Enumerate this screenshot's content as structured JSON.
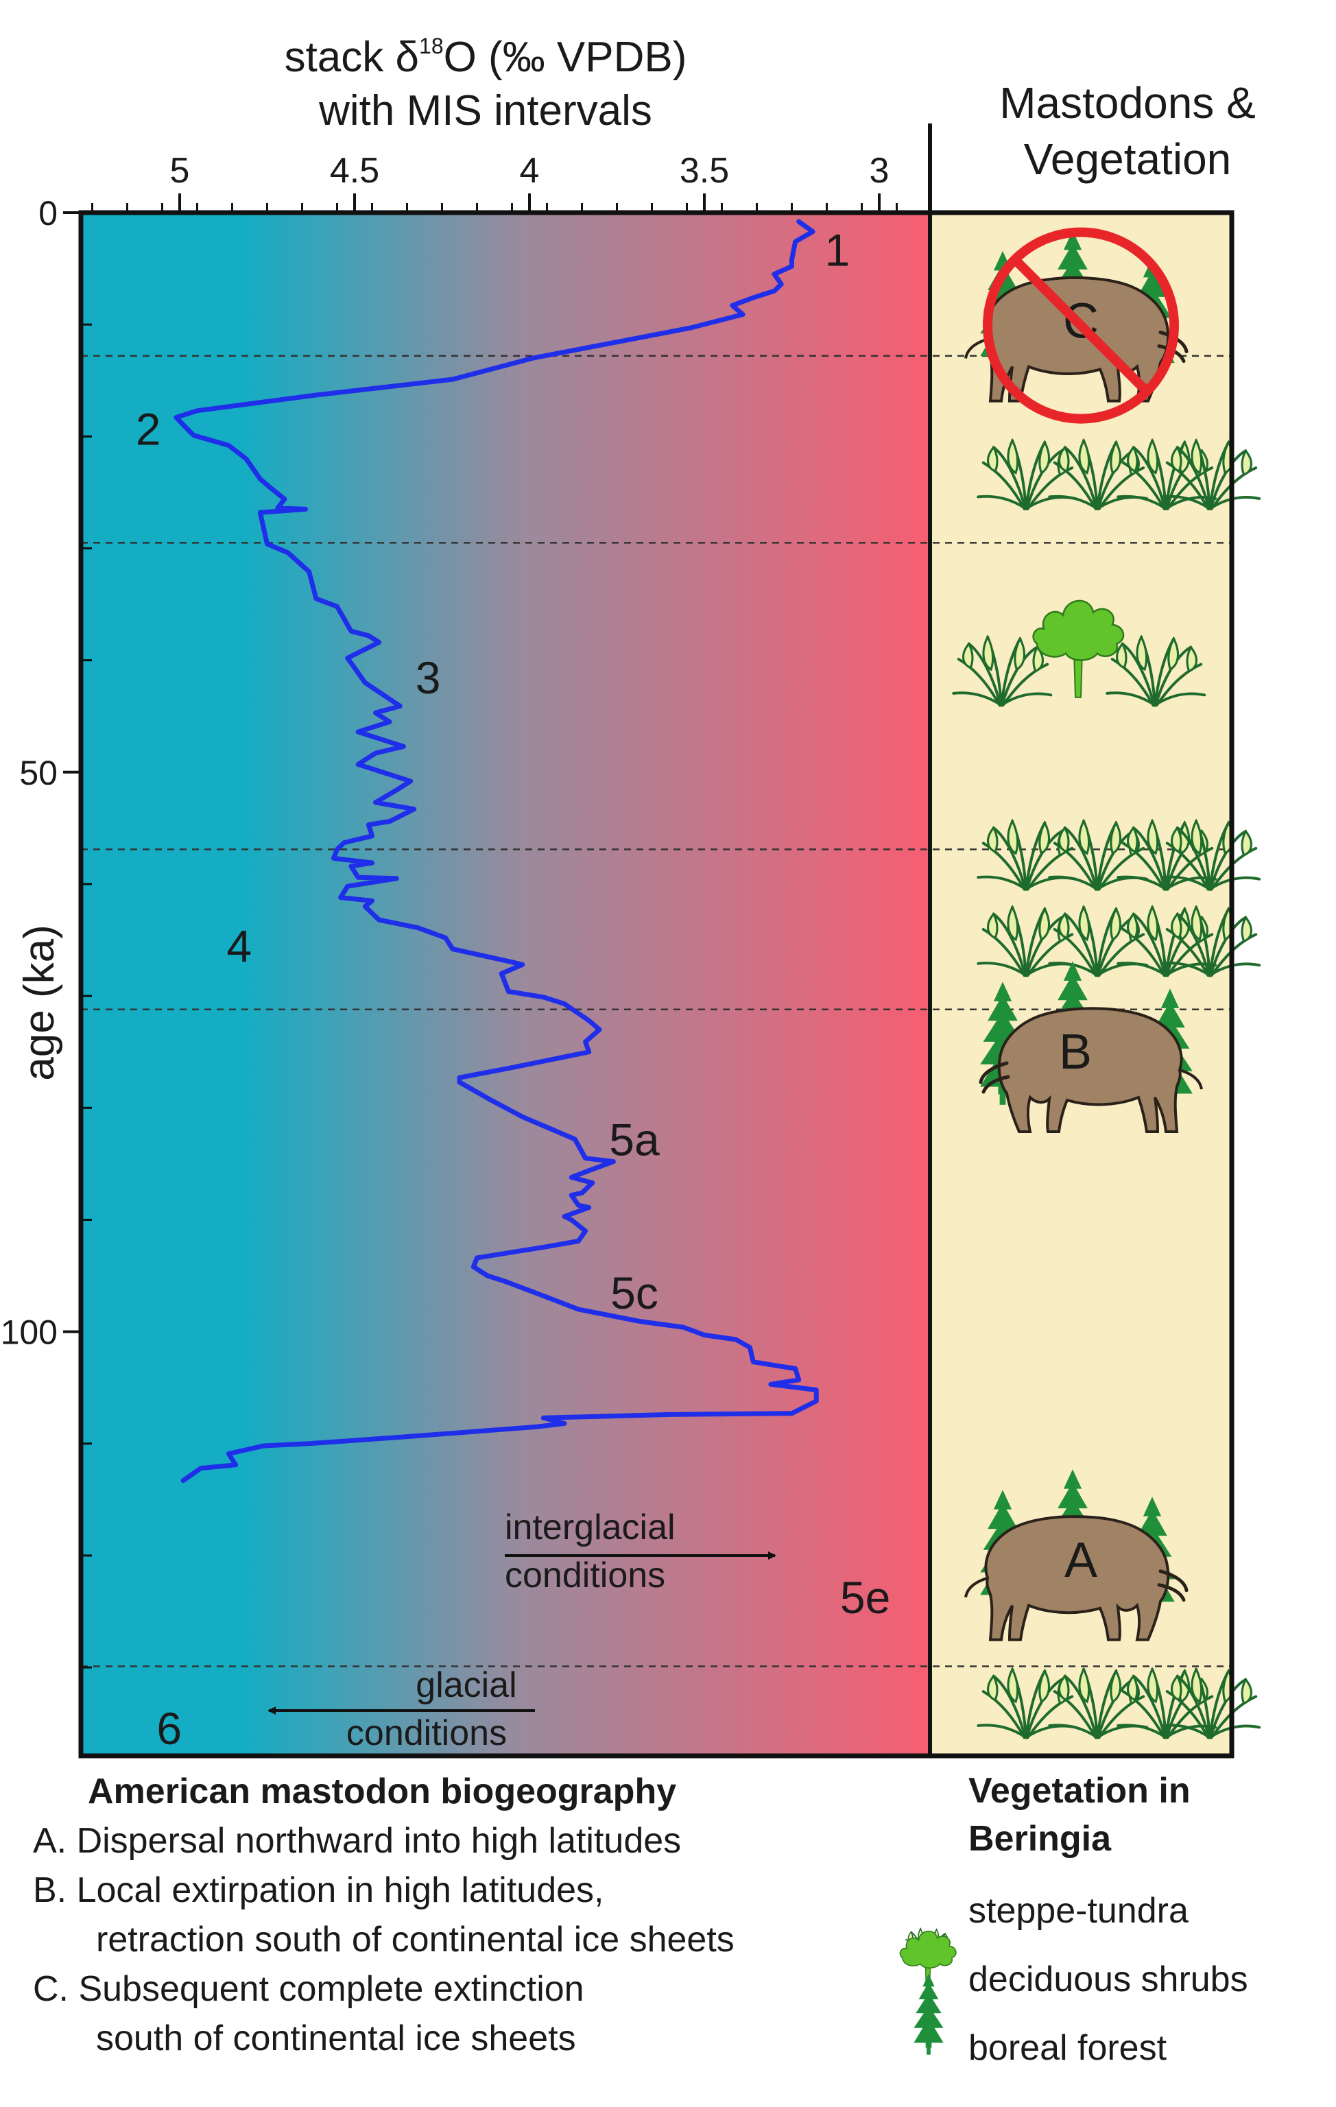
{
  "chart_data": {
    "type": "line",
    "title": "stack δ18O (‰ VPDB)\nwith MIS intervals",
    "top_title_line1": "stack δ",
    "top_title_sup": "18",
    "top_title_rest": "O (‰ VPDB)",
    "top_title_line2": "with MIS intervals",
    "xlabel": "stack δ18O (‰ VPDB)",
    "ylabel": "age (ka)",
    "xlim": [
      5.27,
      2.87
    ],
    "ylim": [
      0,
      140
    ],
    "x_ticks": [
      "5",
      "4.5",
      "4",
      "3.5",
      "3"
    ],
    "y_ticks": [
      "0",
      "50",
      "100"
    ],
    "grid": false,
    "series": [
      {
        "color": "#1f2ee8",
        "points": [
          [
            3.23,
            0.8
          ],
          [
            3.19,
            1.7
          ],
          [
            3.24,
            2.6
          ],
          [
            3.25,
            4.2
          ],
          [
            3.25,
            4.8
          ],
          [
            3.3,
            5.5
          ],
          [
            3.28,
            6.4
          ],
          [
            3.3,
            7.0
          ],
          [
            3.36,
            7.6
          ],
          [
            3.42,
            8.3
          ],
          [
            3.39,
            9.1
          ],
          [
            3.54,
            10.3
          ],
          [
            3.99,
            13.0
          ],
          [
            4.22,
            14.9
          ],
          [
            4.61,
            16.3
          ],
          [
            4.95,
            17.7
          ],
          [
            5.01,
            18.3
          ],
          [
            4.97,
            19.6
          ],
          [
            4.96,
            19.9
          ],
          [
            4.86,
            20.8
          ],
          [
            4.81,
            22.0
          ],
          [
            4.77,
            23.8
          ],
          [
            4.74,
            24.6
          ],
          [
            4.7,
            25.6
          ],
          [
            4.72,
            26.4
          ],
          [
            4.64,
            26.5
          ],
          [
            4.77,
            26.8
          ],
          [
            4.75,
            29.6
          ],
          [
            4.69,
            30.4
          ],
          [
            4.63,
            32.1
          ],
          [
            4.61,
            34.5
          ],
          [
            4.55,
            35.2
          ],
          [
            4.51,
            37.4
          ],
          [
            4.46,
            37.8
          ],
          [
            4.43,
            38.4
          ],
          [
            4.52,
            39.8
          ],
          [
            4.47,
            42.0
          ],
          [
            4.37,
            44.1
          ],
          [
            4.44,
            44.7
          ],
          [
            4.4,
            45.5
          ],
          [
            4.49,
            46.4
          ],
          [
            4.36,
            47.7
          ],
          [
            4.44,
            48.3
          ],
          [
            4.49,
            49.3
          ],
          [
            4.34,
            50.8
          ],
          [
            4.38,
            51.6
          ],
          [
            4.44,
            52.7
          ],
          [
            4.33,
            53.3
          ],
          [
            4.4,
            54.4
          ],
          [
            4.46,
            54.7
          ],
          [
            4.45,
            55.7
          ],
          [
            4.53,
            56.3
          ],
          [
            4.55,
            56.9
          ],
          [
            4.56,
            57.7
          ],
          [
            4.45,
            58.1
          ],
          [
            4.51,
            58.4
          ],
          [
            4.49,
            59.4
          ],
          [
            4.38,
            59.5
          ],
          [
            4.52,
            60.2
          ],
          [
            4.54,
            61.2
          ],
          [
            4.45,
            61.5
          ],
          [
            4.47,
            62.0
          ],
          [
            4.43,
            63.2
          ],
          [
            4.32,
            63.9
          ],
          [
            4.24,
            64.8
          ],
          [
            4.22,
            65.8
          ],
          [
            4.06,
            66.9
          ],
          [
            4.02,
            67.2
          ],
          [
            4.08,
            68.0
          ],
          [
            4.06,
            69.6
          ],
          [
            3.96,
            70.1
          ],
          [
            3.9,
            70.7
          ],
          [
            3.83,
            72.2
          ],
          [
            3.8,
            73.0
          ],
          [
            3.84,
            74.1
          ],
          [
            3.83,
            75.0
          ],
          [
            4.05,
            76.4
          ],
          [
            4.2,
            77.3
          ],
          [
            4.2,
            77.7
          ],
          [
            4.11,
            79.3
          ],
          [
            4.02,
            80.8
          ],
          [
            3.93,
            82.0
          ],
          [
            3.87,
            82.8
          ],
          [
            3.84,
            84.5
          ],
          [
            3.76,
            84.8
          ],
          [
            3.83,
            85.6
          ],
          [
            3.88,
            86.2
          ],
          [
            3.82,
            86.7
          ],
          [
            3.85,
            87.6
          ],
          [
            3.88,
            87.8
          ],
          [
            3.86,
            88.7
          ],
          [
            3.83,
            88.9
          ],
          [
            3.9,
            89.7
          ],
          [
            3.88,
            90.0
          ],
          [
            3.84,
            91.0
          ],
          [
            3.86,
            91.9
          ],
          [
            3.95,
            92.4
          ],
          [
            4.15,
            93.4
          ],
          [
            4.16,
            94.2
          ],
          [
            4.12,
            95.0
          ],
          [
            4.07,
            95.5
          ],
          [
            3.96,
            96.8
          ],
          [
            3.86,
            98.0
          ],
          [
            3.68,
            99.1
          ],
          [
            3.56,
            99.6
          ],
          [
            3.5,
            100.3
          ],
          [
            3.41,
            100.7
          ],
          [
            3.37,
            101.4
          ],
          [
            3.36,
            102.7
          ],
          [
            3.24,
            103.3
          ],
          [
            3.23,
            104.3
          ],
          [
            3.31,
            104.7
          ],
          [
            3.18,
            105.2
          ],
          [
            3.18,
            106.2
          ],
          [
            3.25,
            107.3
          ],
          [
            3.6,
            107.4
          ],
          [
            3.96,
            107.7
          ],
          [
            3.9,
            108.2
          ],
          [
            3.98,
            108.5
          ],
          [
            4.36,
            109.4
          ],
          [
            4.63,
            110.0
          ],
          [
            4.76,
            110.2
          ],
          [
            4.86,
            110.9
          ],
          [
            4.84,
            111.9
          ],
          [
            4.94,
            112.2
          ],
          [
            4.99,
            113.3
          ]
        ]
      }
    ],
    "mis_labels": [
      {
        "text": "1",
        "x": 3.12,
        "y": 3.4
      },
      {
        "text": "2",
        "x": 5.09,
        "y": 19.4
      },
      {
        "text": "3",
        "x": 4.29,
        "y": 41.6
      },
      {
        "text": "4",
        "x": 4.83,
        "y": 65.6
      },
      {
        "text": "5a",
        "x": 3.7,
        "y": 82.9
      },
      {
        "text": "5c",
        "x": 3.7,
        "y": 96.6
      },
      {
        "text": "5e",
        "x": 3.04,
        "y": 123.8
      },
      {
        "text": "6",
        "x": 5.03,
        "y": 135.5
      }
    ],
    "mis_boundaries": [
      12.8,
      29.5,
      56.9,
      71.2,
      129.9
    ],
    "annotations": {
      "interglacial_line1": "interglacial",
      "interglacial_line2": "conditions",
      "glacial_line1": "glacial",
      "glacial_line2": "conditions"
    },
    "background_colors": {
      "glacial": "#14adc3",
      "mid": "#9b8a9d",
      "interglacial": "#f75e72"
    }
  },
  "panel": {
    "title_line1": "Mastodons &",
    "title_line2": "Vegetation",
    "background": "#f9edc3",
    "mastodons": [
      {
        "letter": "C",
        "crossed": true,
        "y": 10.7
      },
      {
        "letter": "B",
        "crossed": false,
        "y": 76.0
      },
      {
        "letter": "A",
        "crossed": false,
        "y": 121.4
      }
    ],
    "vegetation_rows": [
      {
        "type": "steppe-tundra",
        "y": 23.8
      },
      {
        "type": "deciduous-shrubs",
        "y": 41.6
      },
      {
        "type": "steppe-tundra",
        "y": 57.8
      },
      {
        "type": "steppe-tundra",
        "y": 65.5
      },
      {
        "type": "steppe-tundra",
        "y": 133.6
      }
    ]
  },
  "biogeography": {
    "title": "American mastodon biogeography",
    "items": [
      {
        "line1": "A. Dispersal northward into high latitudes",
        "line2": ""
      },
      {
        "line1": "B. Local extirpation in high latitudes,",
        "line2": "retraction south of continental ice sheets"
      },
      {
        "line1": "C. Subsequent complete extinction",
        "line2": "south of continental ice sheets"
      }
    ]
  },
  "vegetation_legend": {
    "title_line1": "Vegetation in",
    "title_line2": "Beringia",
    "items": [
      {
        "icon": "steppe-tundra-icon",
        "label": "steppe-tundra"
      },
      {
        "icon": "deciduous-shrub-icon",
        "label": "deciduous shrubs"
      },
      {
        "icon": "boreal-forest-icon",
        "label": "boreal forest"
      }
    ]
  },
  "colors": {
    "curve": "#1f2ee8",
    "steppe": "#1f6b2e",
    "shrub": "#62c42b",
    "forest": "#1f8f3a",
    "mastodon": "#a08264",
    "ban": "#e8262a"
  }
}
